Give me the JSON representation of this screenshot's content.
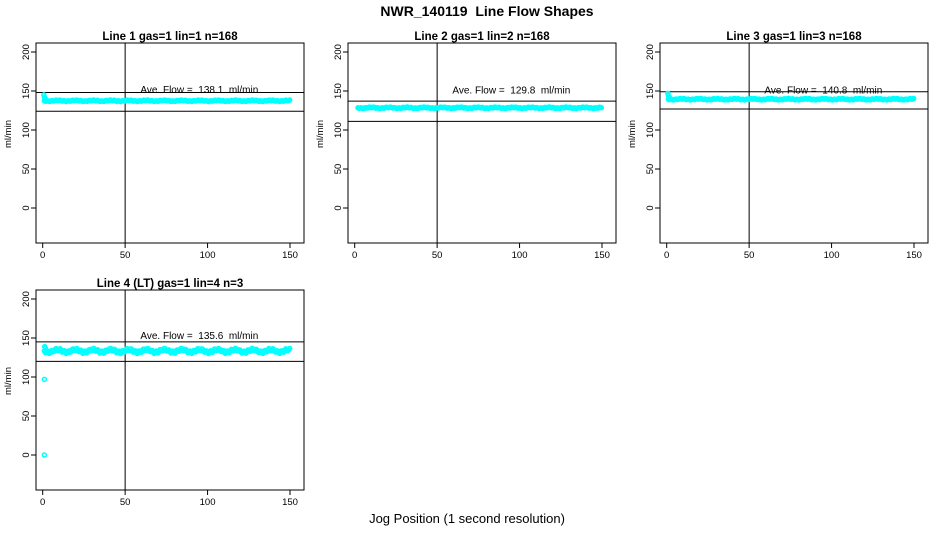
{
  "title": "NWR_140119  Line Flow Shapes",
  "xlabel": "Jog Position (1 second resolution)",
  "colors": {
    "points": "#00FFFF",
    "axis": "#000000",
    "background": "#ffffff"
  },
  "chart_data": {
    "type": "scatter",
    "layout": "4 panels in a 2x3 grid (positions r1c1, r1c2, r1c3, r2c1)",
    "x_range": [
      0,
      150
    ],
    "y_range": [
      0,
      200
    ],
    "x_ticks": [
      0,
      50,
      100,
      150
    ],
    "y_ticks": [
      0,
      50,
      100,
      150,
      200
    ],
    "ylabel": "ml/min",
    "vline_x": 50,
    "grid": false,
    "panels": [
      {
        "id": "line1",
        "row": 1,
        "col": 1,
        "title": "Line 1 gas=1 lin=1 n=168",
        "gas": 1,
        "lin": 1,
        "n": 168,
        "ave_flow": 138.1,
        "ave_flow_label": "Ave. Flow =  138.1  ml/min",
        "band_value": 137.5,
        "band_x_start": 1,
        "band_x_end": 150,
        "upper_line": 148,
        "lower_line": 124,
        "text_value": 151.5,
        "jitter": 0.7,
        "lead_points": [
          [
            0.7,
            145
          ],
          [
            1.0,
            142.5
          ],
          [
            1.4,
            140.5
          ],
          [
            1.8,
            139
          ]
        ],
        "outliers": []
      },
      {
        "id": "line2",
        "row": 1,
        "col": 2,
        "title": "Line 2 gas=1 lin=2 n=168",
        "gas": 1,
        "lin": 2,
        "n": 168,
        "ave_flow": 129.8,
        "ave_flow_label": "Ave. Flow =  129.8  ml/min",
        "band_value": 128.5,
        "band_x_start": 2,
        "band_x_end": 150,
        "upper_line": 137,
        "lower_line": 111,
        "text_value": 150.5,
        "jitter": 0.7,
        "lead_points": [],
        "outliers": []
      },
      {
        "id": "line3",
        "row": 1,
        "col": 3,
        "title": "Line 3 gas=1 lin=3 n=168",
        "gas": 1,
        "lin": 3,
        "n": 168,
        "ave_flow": 140.8,
        "ave_flow_label": "Ave. Flow =  140.8  ml/min",
        "band_value": 139.5,
        "band_x_start": 1,
        "band_x_end": 150,
        "upper_line": 149,
        "lower_line": 127,
        "text_value": 150.5,
        "jitter": 0.7,
        "lead_points": [
          [
            0.7,
            147
          ],
          [
            1.0,
            144.5
          ],
          [
            1.4,
            142.5
          ],
          [
            1.8,
            141
          ]
        ],
        "outliers": []
      },
      {
        "id": "line4",
        "row": 2,
        "col": 1,
        "title": "Line 4 (LT) gas=1 lin=4 n=3",
        "gas": 1,
        "lin": 4,
        "n": 3,
        "ave_flow": 135.6,
        "ave_flow_label": "Ave. Flow =  135.6  ml/min",
        "band_value": 133.5,
        "band_x_start": 1,
        "band_x_end": 150,
        "upper_line": 145,
        "lower_line": 120,
        "text_value": 152.5,
        "jitter": 2.4,
        "lead_points": [
          [
            1.2,
            139
          ],
          [
            1.6,
            137
          ]
        ],
        "outliers": [
          [
            1.0,
            97
          ],
          [
            1.0,
            0
          ]
        ]
      }
    ]
  }
}
